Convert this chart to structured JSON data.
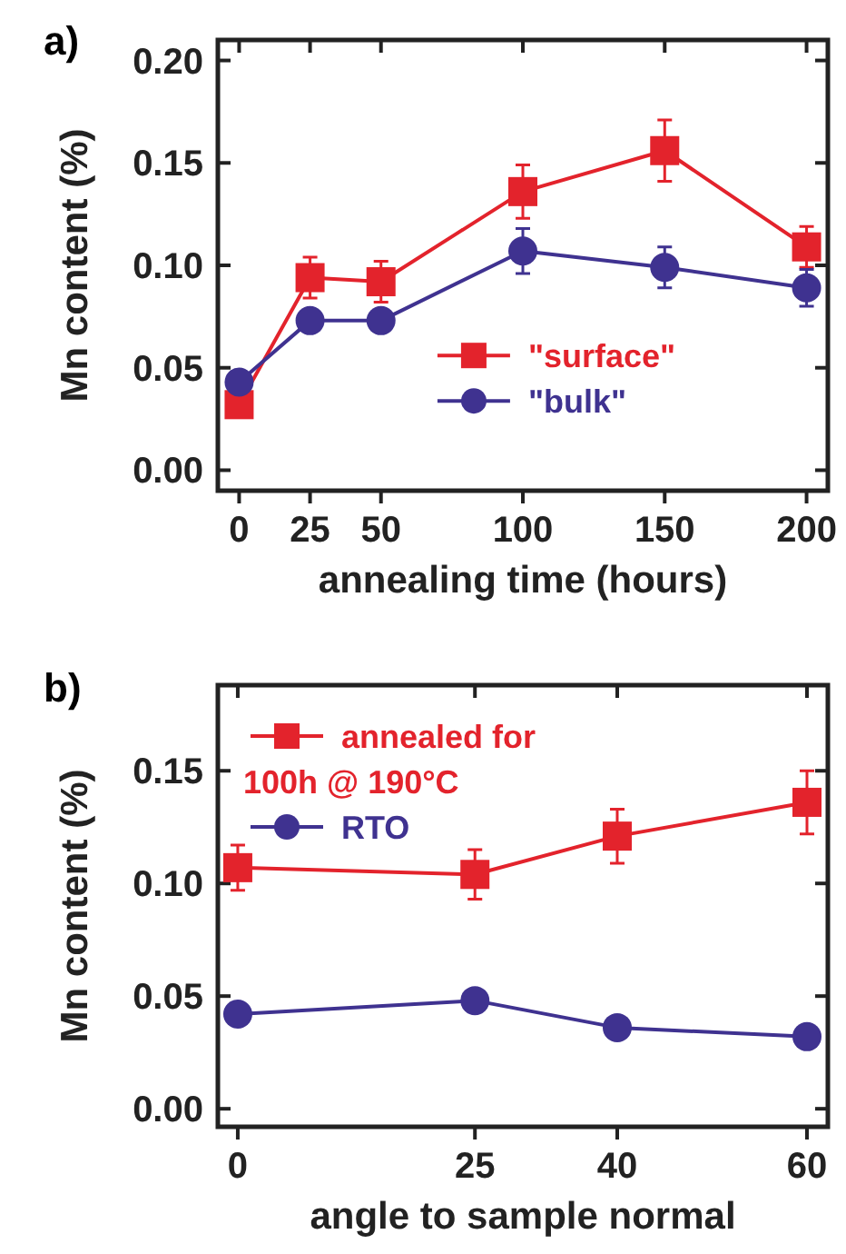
{
  "chart_data": [
    {
      "type": "line",
      "annotations": [
        "a)"
      ],
      "xlabel": "annealing time (hours)",
      "ylabel": "Mn content (%)",
      "x": [
        0,
        25,
        50,
        100,
        150,
        200
      ],
      "xlim": [
        -7.5,
        207.5
      ],
      "xticks": [
        0,
        25,
        50,
        100,
        150,
        200
      ],
      "ylim": [
        -0.01,
        0.21
      ],
      "yticks": [
        {
          "value": 0,
          "label": "0.00"
        },
        {
          "value": 0.05,
          "label": "0.05"
        },
        {
          "value": 0.1,
          "label": "0.10"
        },
        {
          "value": 0.15,
          "label": "0.15"
        },
        {
          "value": 0.2,
          "label": "0.20"
        }
      ],
      "legend": "bottom right",
      "line_style": "solid",
      "series": [
        {
          "name": "\"surface\"",
          "color": "#e3232c",
          "marker": "square",
          "values": [
            0.032,
            0.094,
            0.092,
            0.136,
            0.156,
            0.109
          ],
          "errors": [
            null,
            0.01,
            0.01,
            0.013,
            0.015,
            0.01
          ]
        },
        {
          "name": "\"bulk\"",
          "color": "#3f3290",
          "marker": "circle",
          "values": [
            0.043,
            0.073,
            0.073,
            0.107,
            0.099,
            0.089
          ],
          "errors": [
            null,
            null,
            null,
            0.011,
            0.01,
            0.009
          ]
        }
      ]
    },
    {
      "type": "line",
      "annotations": [
        "b)"
      ],
      "xlabel": "angle to sample normal",
      "ylabel": "Mn content (%)",
      "x": [
        0,
        25,
        40,
        60
      ],
      "xlim": [
        -2.1,
        62.2
      ],
      "xticks": [
        0,
        25,
        40,
        60
      ],
      "ylim": [
        -0.008,
        0.188
      ],
      "yticks": [
        {
          "value": 0,
          "label": "0.00"
        },
        {
          "value": 0.05,
          "label": "0.05"
        },
        {
          "value": 0.1,
          "label": "0.10"
        },
        {
          "value": 0.15,
          "label": "0.15"
        }
      ],
      "legend": "top left",
      "line_style": "solid",
      "series": [
        {
          "name": "annealed for 100h @ 190°C",
          "color": "#e3232c",
          "marker": "square",
          "values": [
            0.107,
            0.104,
            0.121,
            0.136
          ],
          "errors": [
            0.01,
            0.011,
            0.012,
            0.014
          ]
        },
        {
          "name": "RTO",
          "color": "#3f3290",
          "marker": "circle",
          "values": [
            0.042,
            0.048,
            0.036,
            0.032
          ]
        }
      ]
    }
  ]
}
